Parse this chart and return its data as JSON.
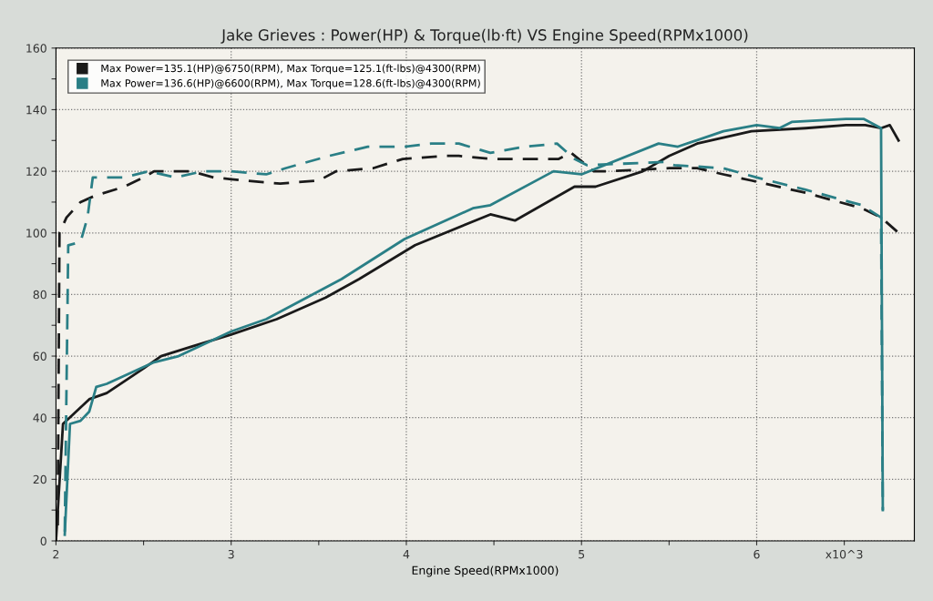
{
  "chart_data": {
    "type": "line",
    "title": "Jake Grieves : Power(HP) & Torque(lb·ft) VS Engine Speed(RPMx1000)",
    "xlabel": "Engine Speed(RPMx1000)",
    "xlim": [
      2,
      6.9
    ],
    "ylim": [
      0,
      160
    ],
    "xticks": [
      2,
      {
        "value": 2.5,
        "label": null
      },
      3,
      {
        "value": 3.5,
        "label": null
      },
      4,
      {
        "value": 4.5,
        "label": null
      },
      5,
      {
        "value": 5.5,
        "label": null
      },
      6,
      {
        "value": 6.5,
        "label": "x10^3"
      }
    ],
    "yticks": [
      0,
      {
        "value": 10,
        "label": null
      },
      20,
      {
        "value": 30,
        "label": null
      },
      40,
      {
        "value": 50,
        "label": null
      },
      60,
      {
        "value": 70,
        "label": null
      },
      80,
      {
        "value": 90,
        "label": null
      },
      100,
      {
        "value": 110,
        "label": null
      },
      120,
      {
        "value": 130,
        "label": null
      },
      140,
      {
        "value": 150,
        "label": null
      },
      160
    ],
    "grid": true,
    "legend": "top left",
    "marker": "none",
    "series": [
      {
        "name": "Max Power=135.1(HP)@6750(RPM), Max Torque=125.1(ft-lbs)@4300(RPM)",
        "color": "#1a1a1a",
        "line_style": "solid",
        "x": [
          2.0,
          2.04,
          2.19,
          2.29,
          2.5,
          2.6,
          2.77,
          3.0,
          3.26,
          3.54,
          3.73,
          4.05,
          4.48,
          4.62,
          4.96,
          5.08,
          5.35,
          5.5,
          5.66,
          5.97,
          6.28,
          6.51,
          6.62,
          6.71,
          6.76,
          6.81
        ],
        "values": [
          0,
          38,
          46,
          48,
          56,
          60,
          63,
          67,
          72,
          79,
          85,
          96,
          106,
          104,
          115,
          115,
          120,
          125,
          129,
          133,
          134,
          135,
          135,
          134,
          135,
          130
        ]
      },
      {
        "color": "#1a1a1a",
        "line_style": "dashed",
        "x": [
          2.01,
          2.02,
          2.06,
          2.14,
          2.22,
          2.39,
          2.5,
          2.56,
          2.77,
          2.9,
          3.07,
          3.28,
          3.5,
          3.6,
          3.81,
          3.98,
          4.22,
          4.3,
          4.48,
          4.87,
          4.94,
          5.07,
          5.16,
          5.5,
          5.66,
          5.81,
          5.97,
          6.28,
          6.6,
          6.71,
          6.81
        ],
        "values": [
          5,
          100,
          105,
          110,
          112,
          115,
          118,
          120,
          120,
          118,
          117,
          116,
          117,
          120,
          121,
          124,
          125,
          125,
          124,
          124,
          126,
          120,
          120,
          121,
          121,
          119,
          117,
          113,
          108,
          105,
          100
        ]
      },
      {
        "name": "Max Power=136.6(HP)@6600(RPM), Max Torque=128.6(ft-lbs)@4300(RPM)",
        "color": "#2a7f86",
        "line_style": "solid",
        "x": [
          2.05,
          2.08,
          2.14,
          2.19,
          2.23,
          2.29,
          2.56,
          2.7,
          3.0,
          3.2,
          3.63,
          3.99,
          4.38,
          4.48,
          4.84,
          5.0,
          5.44,
          5.55,
          5.81,
          6.0,
          6.13,
          6.2,
          6.51,
          6.61,
          6.71,
          6.72
        ],
        "values": [
          2,
          38,
          39,
          42,
          50,
          51,
          58,
          60,
          68,
          72,
          85,
          98,
          108,
          109,
          120,
          119,
          129,
          128,
          133,
          135,
          134,
          136,
          137,
          137,
          134,
          10
        ]
      },
      {
        "color": "#2a7f86",
        "line_style": "dashed",
        "x": [
          2.05,
          2.07,
          2.14,
          2.18,
          2.21,
          2.39,
          2.53,
          2.68,
          2.84,
          3.0,
          3.2,
          3.31,
          3.56,
          3.78,
          3.99,
          4.14,
          4.3,
          4.48,
          4.68,
          4.86,
          4.96,
          5.03,
          5.47,
          5.53,
          5.81,
          6.0,
          6.28,
          6.6,
          6.71,
          6.72
        ],
        "values": [
          3,
          96,
          97,
          105,
          118,
          118,
          120,
          118,
          120,
          120,
          119,
          121,
          125,
          128,
          128,
          129,
          129,
          126,
          128,
          129,
          124,
          122,
          123,
          122,
          121,
          118,
          114,
          109,
          105,
          10
        ]
      }
    ]
  }
}
